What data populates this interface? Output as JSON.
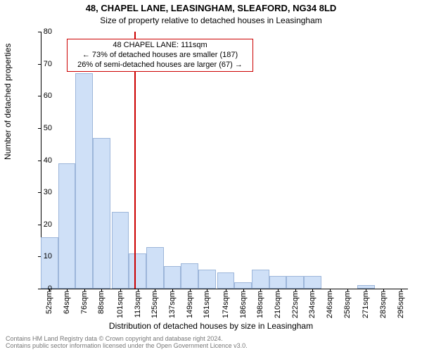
{
  "title_line1": "48, CHAPEL LANE, LEASINGHAM, SLEAFORD, NG34 8LD",
  "title_line2": "Size of property relative to detached houses in Leasingham",
  "ylabel": "Number of detached properties",
  "xlabel": "Distribution of detached houses by size in Leasingham",
  "annotation": {
    "line1": "48 CHAPEL LANE: 111sqm",
    "line2": "← 73% of detached houses are smaller (187)",
    "line3": "26% of semi-detached houses are larger (67) →",
    "border_color": "#cc0000"
  },
  "chart": {
    "type": "histogram",
    "background_color": "#ffffff",
    "bar_fill": "#cfe0f7",
    "bar_border": "#9db6da",
    "axis_color": "#000000",
    "reference_line": {
      "x_value": 111,
      "color": "#cc0000",
      "width": 2
    },
    "x_min": 46,
    "x_max": 300,
    "y_min": 0,
    "y_max": 80,
    "ytick_step": 10,
    "bin_width_sqm": 12,
    "x_ticks": [
      52,
      64,
      76,
      88,
      101,
      113,
      125,
      137,
      149,
      161,
      174,
      186,
      198,
      210,
      222,
      234,
      246,
      258,
      271,
      283,
      295
    ],
    "x_tick_suffix": "sqm",
    "values": [
      16,
      39,
      67,
      47,
      24,
      11,
      13,
      7,
      8,
      6,
      5,
      2,
      6,
      4,
      4,
      4,
      0,
      0,
      1,
      0,
      0
    ]
  },
  "footer": {
    "line1": "Contains HM Land Registry data © Crown copyright and database right 2024.",
    "line2": "Contains public sector information licensed under the Open Government Licence v3.0."
  }
}
